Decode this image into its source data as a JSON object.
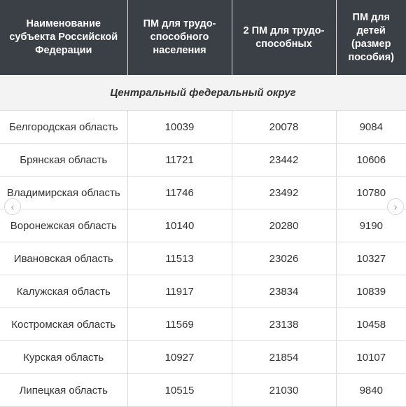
{
  "table": {
    "headers": [
      "Наименование\nсубъекта Российской\nФедерации",
      "ПМ для трудо-\nспособного\nнаселения",
      "2 ПМ для трудо-\nспособных",
      "ПМ для\nдетей\n(размер\nпособия)"
    ],
    "section_title": "Центральный федеральный округ",
    "rows": [
      [
        "Белгородская область",
        "10039",
        "20078",
        "9084"
      ],
      [
        "Брянская область",
        "11721",
        "23442",
        "10606"
      ],
      [
        "Владимирская область",
        "11746",
        "23492",
        "10780"
      ],
      [
        "Воронежская область",
        "10140",
        "20280",
        "9190"
      ],
      [
        "Ивановская область",
        "11513",
        "23026",
        "10327"
      ],
      [
        "Калужская область",
        "11917",
        "23834",
        "10839"
      ],
      [
        "Костромская область",
        "11569",
        "23138",
        "10458"
      ],
      [
        "Курская область",
        "10927",
        "21854",
        "10107"
      ],
      [
        "Липецкая область",
        "10515",
        "21030",
        "9840"
      ]
    ]
  },
  "carousel": {
    "prev_icon": "chevron-left-icon",
    "next_icon": "chevron-right-icon"
  }
}
